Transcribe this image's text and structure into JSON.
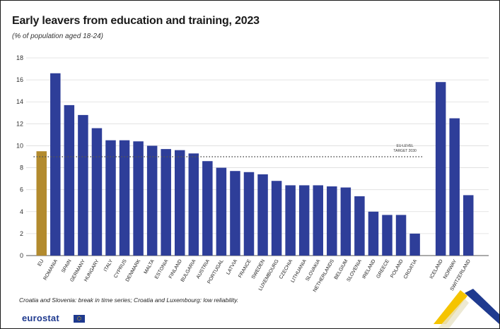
{
  "title": "Early leavers from education and training, 2023",
  "subtitle": "(% of population aged 18-24)",
  "footnote": "Croatia and Slovenia: break in time series; Croatia and Luxembourg: low reliability.",
  "brand": {
    "name": "eurostat",
    "primary_color": "#2e3e99",
    "eu_color": "#b38b2e",
    "accent_yellow": "#f5c400",
    "accent_blue": "#1f3a8f"
  },
  "chart_data": {
    "type": "bar",
    "categories": [
      "EU",
      "ROMANIA",
      "SPAIN",
      "GERMANY",
      "HUNGARY",
      "ITALY",
      "CYPRUS",
      "DENMARK",
      "MALTA",
      "ESTONIA",
      "FINLAND",
      "BULGARIA",
      "AUSTRIA",
      "PORTUGAL",
      "LATVIA",
      "FRANCE",
      "SWEDEN",
      "LUXEMBOURG",
      "CZECHIA",
      "LITHUANIA",
      "SLOVAKIA",
      "NETHERLANDS",
      "BELGIUM",
      "SLOVENIA",
      "IRELAND",
      "GREECE",
      "POLAND",
      "CROATIA",
      "ICELAND",
      "NORWAY",
      "SWITZERLAND"
    ],
    "values": [
      9.5,
      16.6,
      13.7,
      12.8,
      11.6,
      10.5,
      10.5,
      10.4,
      10.0,
      9.7,
      9.6,
      9.3,
      8.6,
      8.0,
      7.7,
      7.6,
      7.4,
      6.8,
      6.4,
      6.4,
      6.4,
      6.3,
      6.2,
      5.4,
      4.0,
      3.7,
      3.7,
      2.0,
      15.8,
      12.5,
      5.5
    ],
    "groups": [
      {
        "from": 0,
        "to": 0
      },
      {
        "from": 1,
        "to": 27
      },
      {
        "from": 28,
        "to": 30
      }
    ],
    "ylim": [
      0,
      18
    ],
    "yticks": [
      0,
      2,
      4,
      6,
      8,
      10,
      12,
      14,
      16,
      18
    ],
    "grid": true,
    "reference_line": {
      "value": 9,
      "label_lines": [
        "EU-LEVEL",
        "TARGET 2030"
      ],
      "style": "dotted"
    },
    "xlabel": "",
    "ylabel": ""
  }
}
